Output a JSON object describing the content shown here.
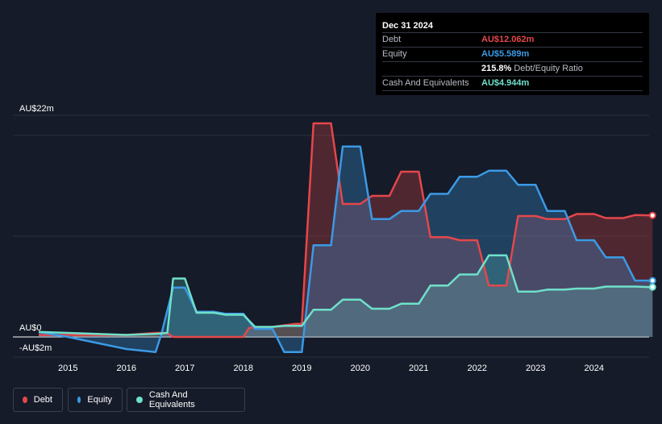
{
  "tooltip": {
    "date": "Dec 31 2024",
    "rows": [
      {
        "label": "Debt",
        "value": "AU$12.062m",
        "color": "#e5474b"
      },
      {
        "label": "Equity",
        "value": "AU$5.589m",
        "color": "#3b9ae6"
      },
      {
        "label": "",
        "value": "215.8%",
        "suffix": "Debt/Equity Ratio",
        "color": "#ffffff"
      },
      {
        "label": "Cash And Equivalents",
        "value": "AU$4.944m",
        "color": "#6fe0cb"
      }
    ]
  },
  "legend": [
    {
      "label": "Debt",
      "color": "#e5474b"
    },
    {
      "label": "Equity",
      "color": "#3b9ae6"
    },
    {
      "label": "Cash And Equivalents",
      "color": "#6fe0cb"
    }
  ],
  "chart_data": {
    "type": "area",
    "y_tick_labels": [
      "AU$22m",
      "AU$0",
      "-AU$2m"
    ],
    "y_ticks": [
      22,
      0,
      -2
    ],
    "ylim": [
      -2,
      22
    ],
    "x_tick_labels": [
      "2015",
      "2016",
      "2017",
      "2018",
      "2019",
      "2020",
      "2021",
      "2022",
      "2023",
      "2024"
    ],
    "x_ticks": [
      2015,
      2016,
      2017,
      2018,
      2019,
      2020,
      2021,
      2022,
      2023,
      2024
    ],
    "xlim": [
      2014.05,
      2025.0
    ],
    "grid": true,
    "legend_position": "bottom-left",
    "series": [
      {
        "name": "Debt",
        "color": "#e5474b",
        "points": [
          [
            2014.5,
            0.2
          ],
          [
            2016.0,
            0.2
          ],
          [
            2016.5,
            0.4
          ],
          [
            2016.7,
            0.4
          ],
          [
            2016.8,
            0.0
          ],
          [
            2018.0,
            0.0
          ],
          [
            2018.1,
            0.9
          ],
          [
            2018.5,
            1.0
          ],
          [
            2018.9,
            1.3
          ],
          [
            2019.0,
            1.3
          ],
          [
            2019.2,
            21.2
          ],
          [
            2019.5,
            21.2
          ],
          [
            2019.7,
            13.2
          ],
          [
            2020.0,
            13.2
          ],
          [
            2020.2,
            14.0
          ],
          [
            2020.5,
            14.0
          ],
          [
            2020.7,
            16.4
          ],
          [
            2021.0,
            16.4
          ],
          [
            2021.2,
            9.9
          ],
          [
            2021.5,
            9.9
          ],
          [
            2021.7,
            9.6
          ],
          [
            2022.0,
            9.6
          ],
          [
            2022.2,
            5.1
          ],
          [
            2022.5,
            5.1
          ],
          [
            2022.7,
            12.0
          ],
          [
            2023.0,
            12.0
          ],
          [
            2023.2,
            11.7
          ],
          [
            2023.5,
            11.7
          ],
          [
            2023.7,
            12.2
          ],
          [
            2024.0,
            12.2
          ],
          [
            2024.2,
            11.8
          ],
          [
            2024.5,
            11.8
          ],
          [
            2024.7,
            12.1
          ],
          [
            2025.0,
            12.062
          ]
        ]
      },
      {
        "name": "Equity",
        "color": "#3b9ae6",
        "points": [
          [
            2014.5,
            0.5
          ],
          [
            2015.0,
            0.0
          ],
          [
            2015.5,
            -0.6
          ],
          [
            2016.0,
            -1.2
          ],
          [
            2016.5,
            -1.5
          ],
          [
            2016.6,
            0.3
          ],
          [
            2016.8,
            4.9
          ],
          [
            2017.0,
            4.9
          ],
          [
            2017.2,
            2.5
          ],
          [
            2017.5,
            2.5
          ],
          [
            2017.7,
            2.3
          ],
          [
            2018.0,
            2.3
          ],
          [
            2018.2,
            0.8
          ],
          [
            2018.5,
            0.8
          ],
          [
            2018.7,
            -1.5
          ],
          [
            2019.0,
            -1.5
          ],
          [
            2019.2,
            9.1
          ],
          [
            2019.5,
            9.1
          ],
          [
            2019.7,
            18.9
          ],
          [
            2020.0,
            18.9
          ],
          [
            2020.2,
            11.7
          ],
          [
            2020.5,
            11.7
          ],
          [
            2020.7,
            12.5
          ],
          [
            2021.0,
            12.5
          ],
          [
            2021.2,
            14.2
          ],
          [
            2021.5,
            14.2
          ],
          [
            2021.7,
            15.9
          ],
          [
            2022.0,
            15.9
          ],
          [
            2022.2,
            16.5
          ],
          [
            2022.5,
            16.5
          ],
          [
            2022.7,
            15.1
          ],
          [
            2023.0,
            15.1
          ],
          [
            2023.2,
            12.5
          ],
          [
            2023.5,
            12.5
          ],
          [
            2023.7,
            9.6
          ],
          [
            2024.0,
            9.6
          ],
          [
            2024.2,
            7.9
          ],
          [
            2024.5,
            7.9
          ],
          [
            2024.7,
            5.6
          ],
          [
            2025.0,
            5.589
          ]
        ]
      },
      {
        "name": "Cash And Equivalents",
        "color": "#6fe0cb",
        "points": [
          [
            2014.5,
            0.5
          ],
          [
            2016.0,
            0.2
          ],
          [
            2016.5,
            0.3
          ],
          [
            2016.7,
            0.4
          ],
          [
            2016.8,
            5.8
          ],
          [
            2017.0,
            5.8
          ],
          [
            2017.2,
            2.4
          ],
          [
            2017.5,
            2.4
          ],
          [
            2017.7,
            2.2
          ],
          [
            2018.0,
            2.2
          ],
          [
            2018.2,
            1.0
          ],
          [
            2018.5,
            1.0
          ],
          [
            2018.7,
            1.1
          ],
          [
            2019.0,
            1.1
          ],
          [
            2019.2,
            2.7
          ],
          [
            2019.5,
            2.7
          ],
          [
            2019.7,
            3.7
          ],
          [
            2020.0,
            3.7
          ],
          [
            2020.2,
            2.8
          ],
          [
            2020.5,
            2.8
          ],
          [
            2020.7,
            3.3
          ],
          [
            2021.0,
            3.3
          ],
          [
            2021.2,
            5.1
          ],
          [
            2021.5,
            5.1
          ],
          [
            2021.7,
            6.2
          ],
          [
            2022.0,
            6.2
          ],
          [
            2022.2,
            8.1
          ],
          [
            2022.5,
            8.1
          ],
          [
            2022.7,
            4.5
          ],
          [
            2023.0,
            4.5
          ],
          [
            2023.2,
            4.7
          ],
          [
            2023.5,
            4.7
          ],
          [
            2023.7,
            4.8
          ],
          [
            2024.0,
            4.8
          ],
          [
            2024.2,
            5.0
          ],
          [
            2024.5,
            5.0
          ],
          [
            2024.7,
            5.0
          ],
          [
            2025.0,
            4.944
          ]
        ]
      }
    ]
  }
}
